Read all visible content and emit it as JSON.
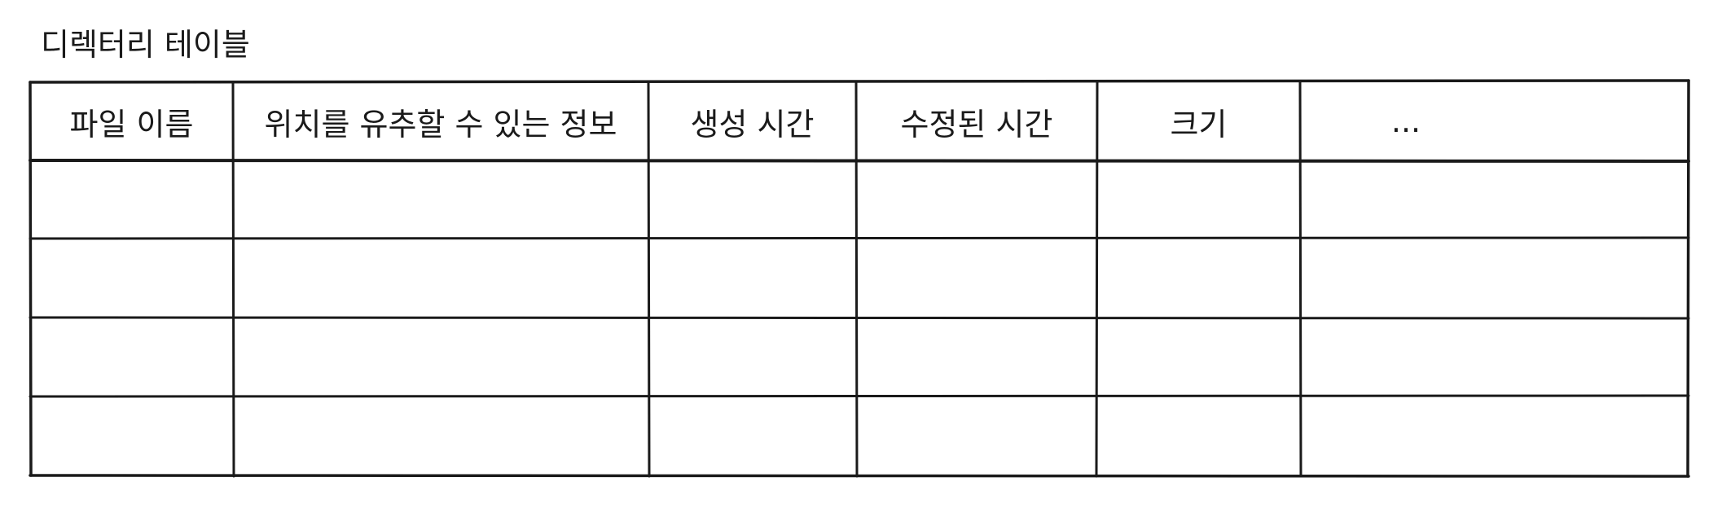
{
  "title": "디렉터리 테이블",
  "table": {
    "headers": [
      "파일 이름",
      "위치를 유추할 수 있는 정보",
      "생성 시간",
      "수정된 시간",
      "크기",
      "..."
    ],
    "rows": [
      [
        "",
        "",
        "",
        "",
        "",
        ""
      ],
      [
        "",
        "",
        "",
        "",
        "",
        ""
      ],
      [
        "",
        "",
        "",
        "",
        "",
        ""
      ],
      [
        "",
        "",
        "",
        "",
        "",
        ""
      ]
    ]
  }
}
